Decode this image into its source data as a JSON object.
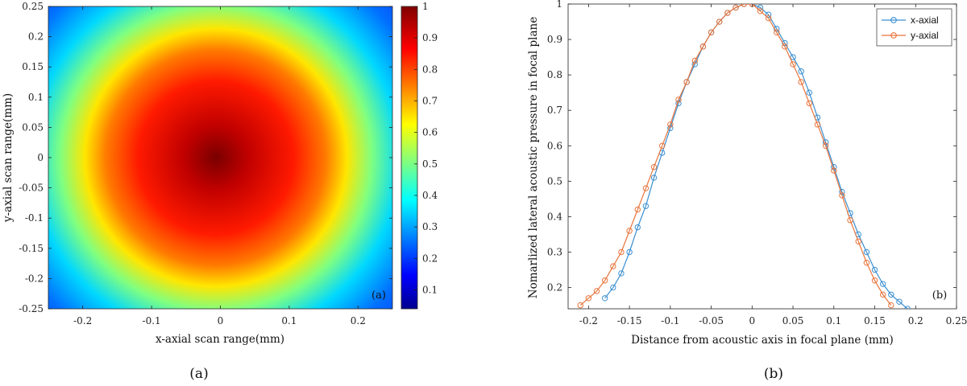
{
  "chart_data": [
    {
      "type": "heatmap",
      "title": "",
      "xlabel": "x-axial scan range(mm)",
      "ylabel": "y-axial scan range(mm)",
      "xlim": [
        -0.25,
        0.25
      ],
      "ylim": [
        -0.25,
        0.25
      ],
      "x_ticks": [
        "-0.2",
        "-0.1",
        "0",
        "0.1",
        "0.2"
      ],
      "x_tick_values": [
        -0.2,
        -0.1,
        0,
        0.1,
        0.2
      ],
      "y_ticks": [
        "0.25",
        "0.2",
        "0.15",
        "0.1",
        "0.05",
        "0",
        "-0.05",
        "-0.1",
        "-0.15",
        "-0.2",
        "-0.25"
      ],
      "y_tick_values": [
        0.25,
        0.2,
        0.15,
        0.1,
        0.05,
        0,
        -0.05,
        -0.1,
        -0.15,
        -0.2,
        -0.25
      ],
      "colorbar": {
        "range": [
          0.04,
          1.0
        ],
        "ticks": [
          "1",
          "0.9",
          "0.8",
          "0.7",
          "0.6",
          "0.5",
          "0.4",
          "0.3",
          "0.2",
          "0.1"
        ],
        "tick_values": [
          1,
          0.9,
          0.8,
          0.7,
          0.6,
          0.5,
          0.4,
          0.3,
          0.2,
          0.1
        ],
        "colormap": "jet"
      },
      "peak": {
        "x": -0.005,
        "y": 0.0,
        "value": 1.0
      },
      "panel_tag": "(a)",
      "caption": "(a)"
    },
    {
      "type": "line",
      "title": "",
      "xlabel": "Distance from acoustic axis in focal plane (mm)",
      "ylabel": "Nomarlized lateral acoustic pressure in focal plane",
      "xlim": [
        -0.225,
        0.25
      ],
      "ylim": [
        0.14,
        1.0
      ],
      "x_ticks": [
        "-0.2",
        "-0.15",
        "-0.1",
        "-0.05",
        "0",
        "0.05",
        "0.1",
        "0.15",
        "0.2",
        "0.25"
      ],
      "x_tick_values": [
        -0.2,
        -0.15,
        -0.1,
        -0.05,
        0,
        0.05,
        0.1,
        0.15,
        0.2,
        0.25
      ],
      "y_ticks": [
        "1",
        "0.9",
        "0.8",
        "0.7",
        "0.6",
        "0.5",
        "0.4",
        "0.3",
        "0.2"
      ],
      "y_tick_values": [
        1,
        0.9,
        0.8,
        0.7,
        0.6,
        0.5,
        0.4,
        0.3,
        0.2
      ],
      "legend_position": "top-right",
      "series": [
        {
          "name": "x-axial",
          "color": "#3a8fd1",
          "x": [
            -0.18,
            -0.17,
            -0.16,
            -0.15,
            -0.14,
            -0.13,
            -0.12,
            -0.11,
            -0.1,
            -0.09,
            -0.08,
            -0.07,
            -0.06,
            -0.05,
            -0.04,
            -0.03,
            -0.02,
            -0.01,
            0,
            0.01,
            0.02,
            0.03,
            0.04,
            0.05,
            0.06,
            0.07,
            0.08,
            0.09,
            0.1,
            0.11,
            0.12,
            0.13,
            0.14,
            0.15,
            0.16,
            0.17,
            0.18,
            0.19
          ],
          "y": [
            0.17,
            0.2,
            0.24,
            0.3,
            0.37,
            0.43,
            0.51,
            0.58,
            0.65,
            0.72,
            0.78,
            0.83,
            0.88,
            0.92,
            0.95,
            0.975,
            0.99,
            1.0,
            1.0,
            0.99,
            0.97,
            0.93,
            0.89,
            0.85,
            0.81,
            0.75,
            0.68,
            0.61,
            0.54,
            0.47,
            0.41,
            0.35,
            0.3,
            0.25,
            0.21,
            0.18,
            0.16,
            0.14
          ]
        },
        {
          "name": "y-axial",
          "color": "#e8743b",
          "x": [
            -0.21,
            -0.2,
            -0.19,
            -0.18,
            -0.17,
            -0.16,
            -0.15,
            -0.14,
            -0.13,
            -0.12,
            -0.11,
            -0.1,
            -0.09,
            -0.08,
            -0.07,
            -0.06,
            -0.05,
            -0.04,
            -0.03,
            -0.02,
            -0.01,
            0,
            0.01,
            0.02,
            0.03,
            0.04,
            0.05,
            0.06,
            0.07,
            0.08,
            0.09,
            0.1,
            0.11,
            0.12,
            0.13,
            0.14,
            0.15,
            0.16,
            0.17
          ],
          "y": [
            0.15,
            0.17,
            0.19,
            0.22,
            0.26,
            0.3,
            0.36,
            0.42,
            0.48,
            0.54,
            0.6,
            0.66,
            0.73,
            0.78,
            0.84,
            0.88,
            0.92,
            0.95,
            0.975,
            0.99,
            1.0,
            1.0,
            0.98,
            0.96,
            0.92,
            0.88,
            0.83,
            0.78,
            0.72,
            0.66,
            0.6,
            0.53,
            0.46,
            0.39,
            0.33,
            0.27,
            0.22,
            0.18,
            0.15
          ]
        }
      ],
      "panel_tag": "(b)",
      "caption": "(b)"
    }
  ]
}
